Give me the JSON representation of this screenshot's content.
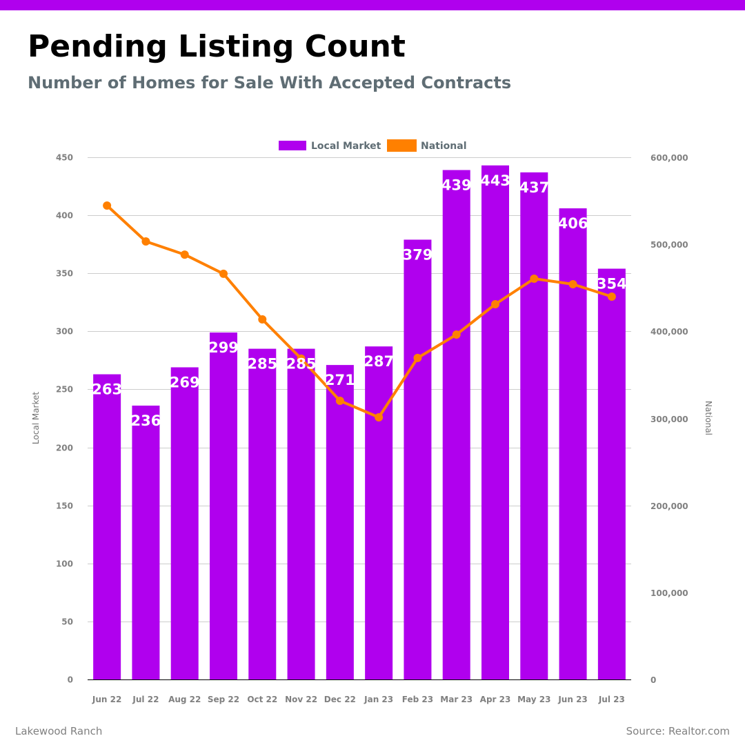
{
  "header": {
    "title": "Pending Listing Count",
    "subtitle": "Number of Homes for Sale With Accepted Contracts"
  },
  "footer": {
    "location": "Lakewood Ranch",
    "source": "Source: Realtor.com"
  },
  "colors": {
    "accent": "#b000ee",
    "local": "#b000ee",
    "national": "#ff8000",
    "grid": "#cccccc",
    "tick": "#808080"
  },
  "chart_data": {
    "type": "bar",
    "title": "Pending Listing Count",
    "subtitle": "Number of Homes for Sale With Accepted Contracts",
    "categories": [
      "Jun 22",
      "Jul 22",
      "Aug 22",
      "Sep 22",
      "Oct 22",
      "Nov 22",
      "Dec 22",
      "Jan 23",
      "Feb 23",
      "Mar 23",
      "Apr 23",
      "May 23",
      "Jun 23",
      "Jul 23"
    ],
    "series": [
      {
        "name": "Local Market",
        "type": "bar",
        "axis": "left",
        "color": "#b000ee",
        "values": [
          263,
          236,
          269,
          299,
          285,
          285,
          271,
          287,
          379,
          439,
          443,
          437,
          406,
          354
        ],
        "labels": [
          "263",
          "236",
          "269",
          "299",
          "285",
          "285",
          "271",
          "287",
          "379",
          "439",
          "443",
          "437",
          "406",
          "354"
        ]
      },
      {
        "name": "National",
        "type": "line",
        "axis": "right",
        "color": "#ff8000",
        "values": [
          544500,
          503300,
          488200,
          466100,
          413700,
          368600,
          320200,
          301200,
          369400,
          396300,
          431200,
          460500,
          454200,
          439900
        ]
      }
    ],
    "y_left": {
      "label": "Local Market",
      "range": [
        0,
        450
      ],
      "ticks": [
        0,
        50,
        100,
        150,
        200,
        250,
        300,
        350,
        400,
        450
      ],
      "tick_labels": [
        "0",
        "50",
        "100",
        "150",
        "200",
        "250",
        "300",
        "350",
        "400",
        "450"
      ]
    },
    "y_right": {
      "label": "National",
      "range": [
        0,
        600000
      ],
      "ticks": [
        0,
        100000,
        200000,
        300000,
        400000,
        500000,
        600000
      ],
      "tick_labels": [
        "0",
        "100,000",
        "200,000",
        "300,000",
        "400,000",
        "500,000",
        "600,000"
      ]
    },
    "legend": {
      "position": "top-center",
      "entries": [
        "Local Market",
        "National"
      ]
    },
    "grid": true
  }
}
